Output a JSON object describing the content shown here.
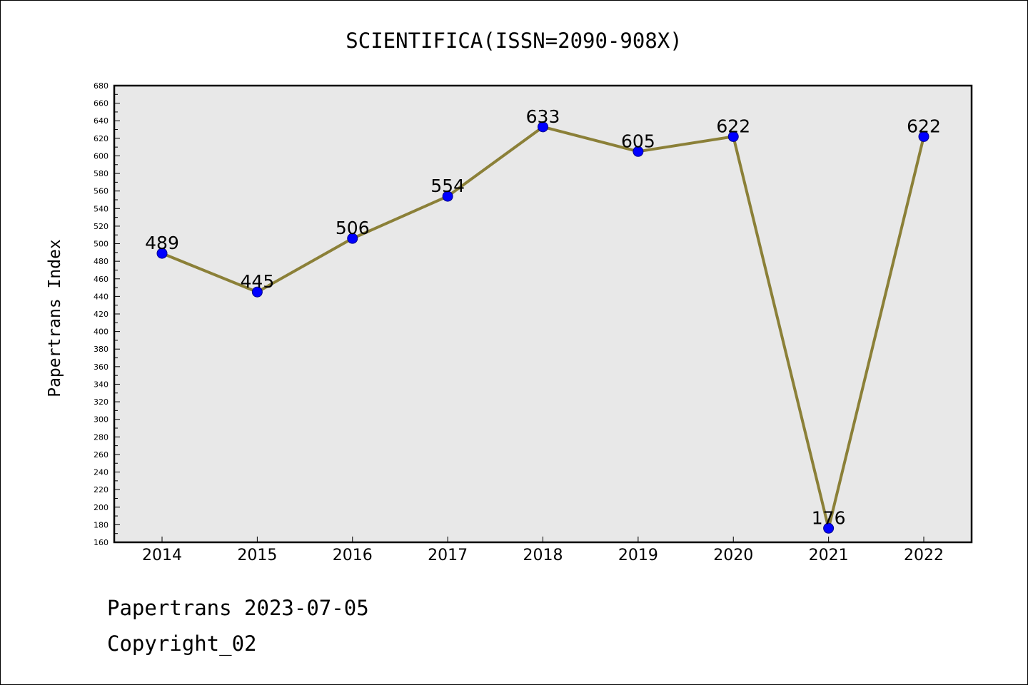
{
  "chart_data": {
    "type": "line",
    "title": "SCIENTIFICA(ISSN=2090-908X)",
    "xlabel": "",
    "ylabel": "Papertrans Index",
    "categories": [
      "2014",
      "2015",
      "2016",
      "2017",
      "2018",
      "2019",
      "2020",
      "2021",
      "2022"
    ],
    "series": [
      {
        "values": [
          489,
          445,
          506,
          554,
          633,
          605,
          622,
          176,
          622
        ]
      }
    ],
    "ylim": [
      160,
      680
    ],
    "ytick_step": 20,
    "grid": false,
    "plot_background": "#e8e8e8",
    "line_color": "#8b8038",
    "marker_color": "#0000ff",
    "data_labels": true
  },
  "footer": {
    "line1": "Papertrans 2023-07-05",
    "line2": "Copyright_02"
  }
}
